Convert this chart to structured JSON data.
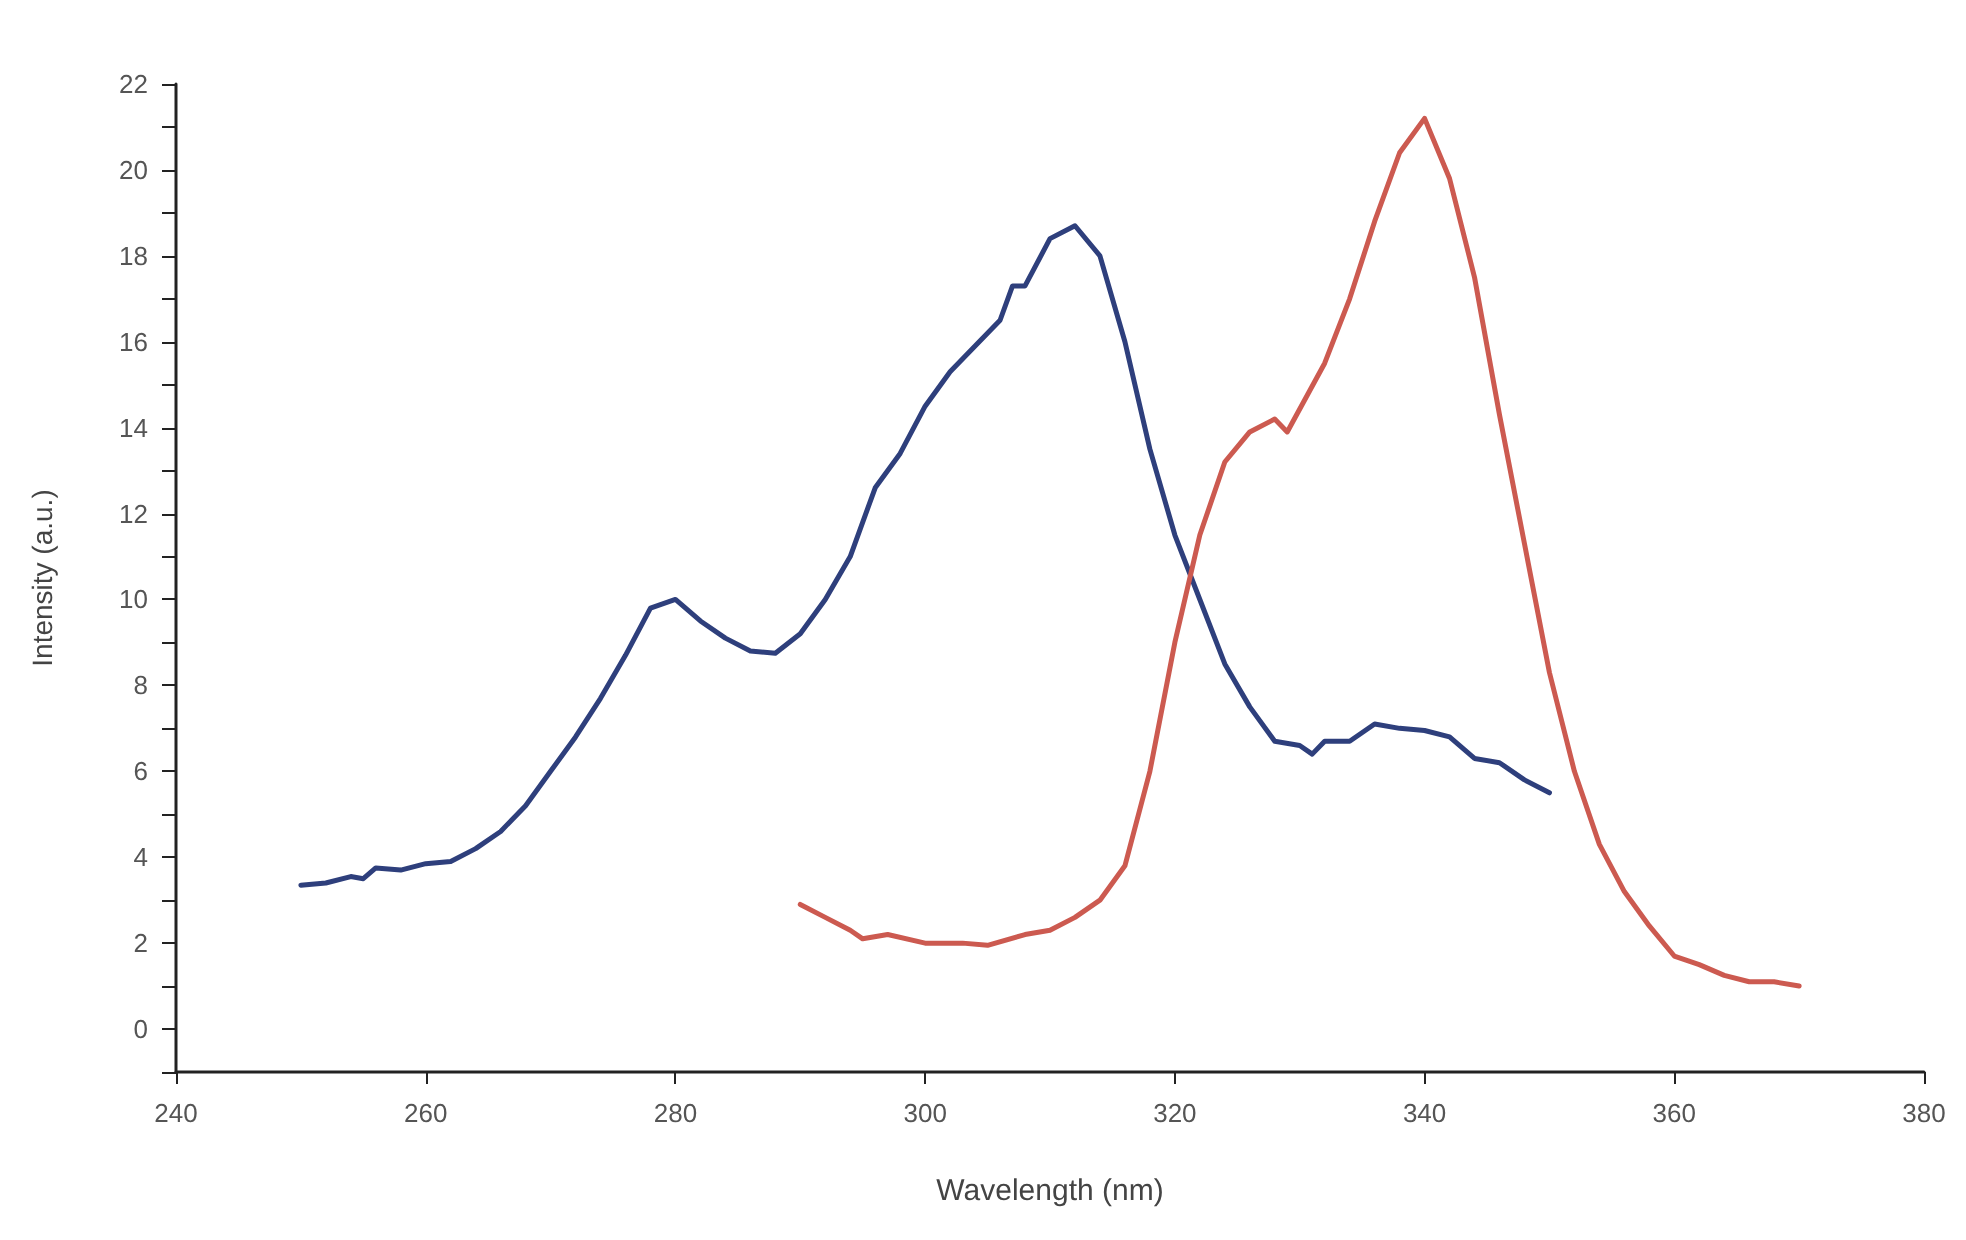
{
  "chart_data": {
    "type": "line",
    "xlabel": "Wavelength (nm)",
    "ylabel": "Intensity (a.u.)",
    "xlim": [
      240,
      380
    ],
    "xticks": [
      240,
      260,
      280,
      300,
      320,
      340,
      360,
      380
    ],
    "ylim": [
      -1,
      22
    ],
    "yticks": [
      {
        "value": -1,
        "label": null
      },
      0,
      {
        "value": 1,
        "label": null
      },
      2,
      {
        "value": 3,
        "label": null
      },
      4,
      {
        "value": 5,
        "label": null
      },
      6,
      {
        "value": 7,
        "label": null
      },
      8,
      {
        "value": 9,
        "label": null
      },
      10,
      {
        "value": 11,
        "label": null
      },
      12,
      {
        "value": 13,
        "label": null
      },
      14,
      {
        "value": 15,
        "label": null
      },
      16,
      {
        "value": 17,
        "label": null
      },
      18,
      {
        "value": 19,
        "label": null
      },
      20,
      {
        "value": 21,
        "label": null
      },
      22
    ],
    "grid": false,
    "marker": "none",
    "line_style": "solid",
    "series": [
      {
        "color": "#2e3f7c",
        "x": [
          250,
          252,
          254,
          255,
          256,
          258,
          260,
          262,
          264,
          266,
          268,
          270,
          272,
          274,
          276,
          278,
          280,
          282,
          284,
          286,
          288,
          290,
          292,
          294,
          296,
          298,
          300,
          302,
          304,
          306,
          307,
          308,
          310,
          312,
          314,
          316,
          318,
          320,
          322,
          324,
          326,
          328,
          330,
          331,
          332,
          334,
          336,
          338,
          340,
          342,
          344,
          346,
          348,
          350
        ],
        "values": [
          3.35,
          3.4,
          3.55,
          3.5,
          3.75,
          3.7,
          3.85,
          3.9,
          4.2,
          4.6,
          5.2,
          6.0,
          6.8,
          7.7,
          8.7,
          9.8,
          10.0,
          9.5,
          9.1,
          8.8,
          8.75,
          9.2,
          10.0,
          11.0,
          12.6,
          13.4,
          14.5,
          15.3,
          15.9,
          16.5,
          17.3,
          17.3,
          18.4,
          18.7,
          18.0,
          16.0,
          13.5,
          11.5,
          10.0,
          8.5,
          7.5,
          6.7,
          6.6,
          6.4,
          6.7,
          6.7,
          7.1,
          7.0,
          6.95,
          6.8,
          6.3,
          6.2,
          5.8,
          5.5
        ]
      },
      {
        "color": "#cc5a50",
        "x": [
          290,
          292,
          294,
          295,
          297,
          300,
          303,
          305,
          308,
          310,
          312,
          314,
          316,
          318,
          320,
          322,
          324,
          326,
          328,
          329,
          332,
          334,
          336,
          338,
          340,
          342,
          344,
          346,
          348,
          350,
          352,
          354,
          356,
          358,
          360,
          362,
          364,
          366,
          368,
          370
        ],
        "values": [
          2.9,
          2.6,
          2.3,
          2.1,
          2.2,
          2.0,
          2.0,
          1.95,
          2.2,
          2.3,
          2.6,
          3.0,
          3.8,
          6.0,
          9.0,
          11.5,
          13.2,
          13.9,
          14.2,
          13.9,
          15.5,
          17.0,
          18.8,
          20.4,
          21.2,
          19.8,
          17.5,
          14.3,
          11.3,
          8.3,
          6.0,
          4.3,
          3.2,
          2.4,
          1.7,
          1.5,
          1.25,
          1.1,
          1.1,
          1.0
        ]
      }
    ]
  }
}
